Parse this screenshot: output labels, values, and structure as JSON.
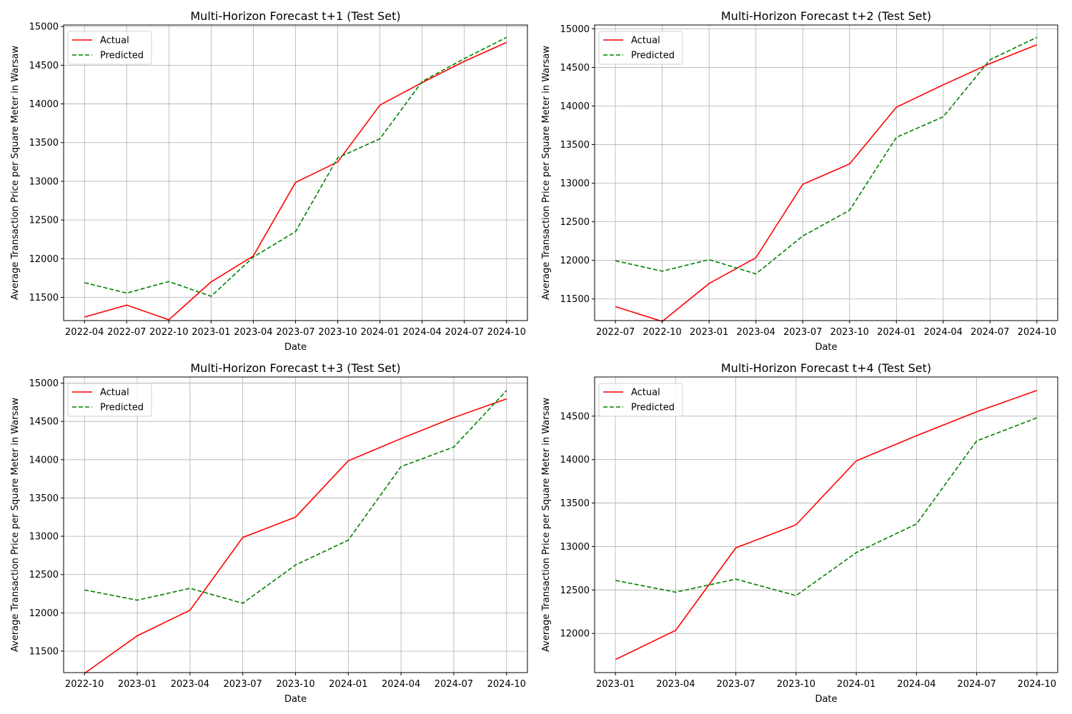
{
  "chart_data": [
    {
      "type": "line",
      "title": "Multi-Horizon Forecast t+1 (Test Set)",
      "xlabel": "Date",
      "ylabel": "Average Transaction Price per Square Meter in Warsaw",
      "x": [
        "2022-04",
        "2022-07",
        "2022-10",
        "2023-01",
        "2023-04",
        "2023-07",
        "2023-10",
        "2024-01",
        "2024-04",
        "2024-07",
        "2024-10"
      ],
      "yticks": [
        11500,
        12000,
        12500,
        13000,
        13500,
        14000,
        14500,
        15000
      ],
      "ylim": [
        11200,
        15020
      ],
      "grid": true,
      "legend": "upper left",
      "series": [
        {
          "name": "Actual",
          "color": "#ff0000",
          "style": "solid",
          "values": [
            11245,
            11400,
            11210,
            11700,
            12035,
            12985,
            13250,
            13985,
            14275,
            14550,
            14795
          ]
        },
        {
          "name": "Predicted",
          "color": "#008000",
          "style": "dashed",
          "values": [
            11690,
            11555,
            11705,
            11515,
            12020,
            12350,
            13305,
            13550,
            14290,
            14585,
            14860
          ]
        }
      ]
    },
    {
      "type": "line",
      "title": "Multi-Horizon Forecast t+2 (Test Set)",
      "xlabel": "Date",
      "ylabel": "Average Transaction Price per Square Meter in Warsaw",
      "x": [
        "2022-07",
        "2022-10",
        "2023-01",
        "2023-04",
        "2023-07",
        "2023-10",
        "2024-01",
        "2024-04",
        "2024-07",
        "2024-10"
      ],
      "yticks": [
        11500,
        12000,
        12500,
        13000,
        13500,
        14000,
        14500,
        15000
      ],
      "ylim": [
        11220,
        15050
      ],
      "grid": true,
      "legend": "upper left",
      "series": [
        {
          "name": "Actual",
          "color": "#ff0000",
          "style": "solid",
          "values": [
            11400,
            11210,
            11700,
            12035,
            12985,
            13250,
            13985,
            14275,
            14550,
            14795
          ]
        },
        {
          "name": "Predicted",
          "color": "#008000",
          "style": "dashed",
          "values": [
            11995,
            11860,
            12010,
            11825,
            12315,
            12650,
            13595,
            13860,
            14600,
            14890
          ]
        }
      ]
    },
    {
      "type": "line",
      "title": "Multi-Horizon Forecast t+3 (Test Set)",
      "xlabel": "Date",
      "ylabel": "Average Transaction Price per Square Meter in Warsaw",
      "x": [
        "2022-10",
        "2023-01",
        "2023-04",
        "2023-07",
        "2023-10",
        "2024-01",
        "2024-04",
        "2024-07",
        "2024-10"
      ],
      "yticks": [
        11500,
        12000,
        12500,
        13000,
        13500,
        14000,
        14500,
        15000
      ],
      "ylim": [
        11220,
        15080
      ],
      "grid": true,
      "legend": "upper left",
      "series": [
        {
          "name": "Actual",
          "color": "#ff0000",
          "style": "solid",
          "values": [
            11210,
            11700,
            12035,
            12985,
            13250,
            13985,
            14275,
            14550,
            14795
          ]
        },
        {
          "name": "Predicted",
          "color": "#008000",
          "style": "dashed",
          "values": [
            12300,
            12165,
            12320,
            12125,
            12625,
            12950,
            13910,
            14165,
            14905
          ]
        }
      ]
    },
    {
      "type": "line",
      "title": "Multi-Horizon Forecast t+4 (Test Set)",
      "xlabel": "Date",
      "ylabel": "Average Transaction Price per Square Meter in Warsaw",
      "x": [
        "2023-01",
        "2023-04",
        "2023-07",
        "2023-10",
        "2024-01",
        "2024-04",
        "2024-07",
        "2024-10"
      ],
      "yticks": [
        12000,
        12500,
        13000,
        13500,
        14000,
        14500
      ],
      "ylim": [
        11550,
        14950
      ],
      "grid": true,
      "legend": "upper left",
      "series": [
        {
          "name": "Actual",
          "color": "#ff0000",
          "style": "solid",
          "values": [
            11700,
            12035,
            12985,
            13250,
            13985,
            14275,
            14550,
            14795
          ]
        },
        {
          "name": "Predicted",
          "color": "#008000",
          "style": "dashed",
          "values": [
            12610,
            12475,
            12625,
            12435,
            12930,
            13260,
            14215,
            14480
          ]
        }
      ]
    }
  ]
}
